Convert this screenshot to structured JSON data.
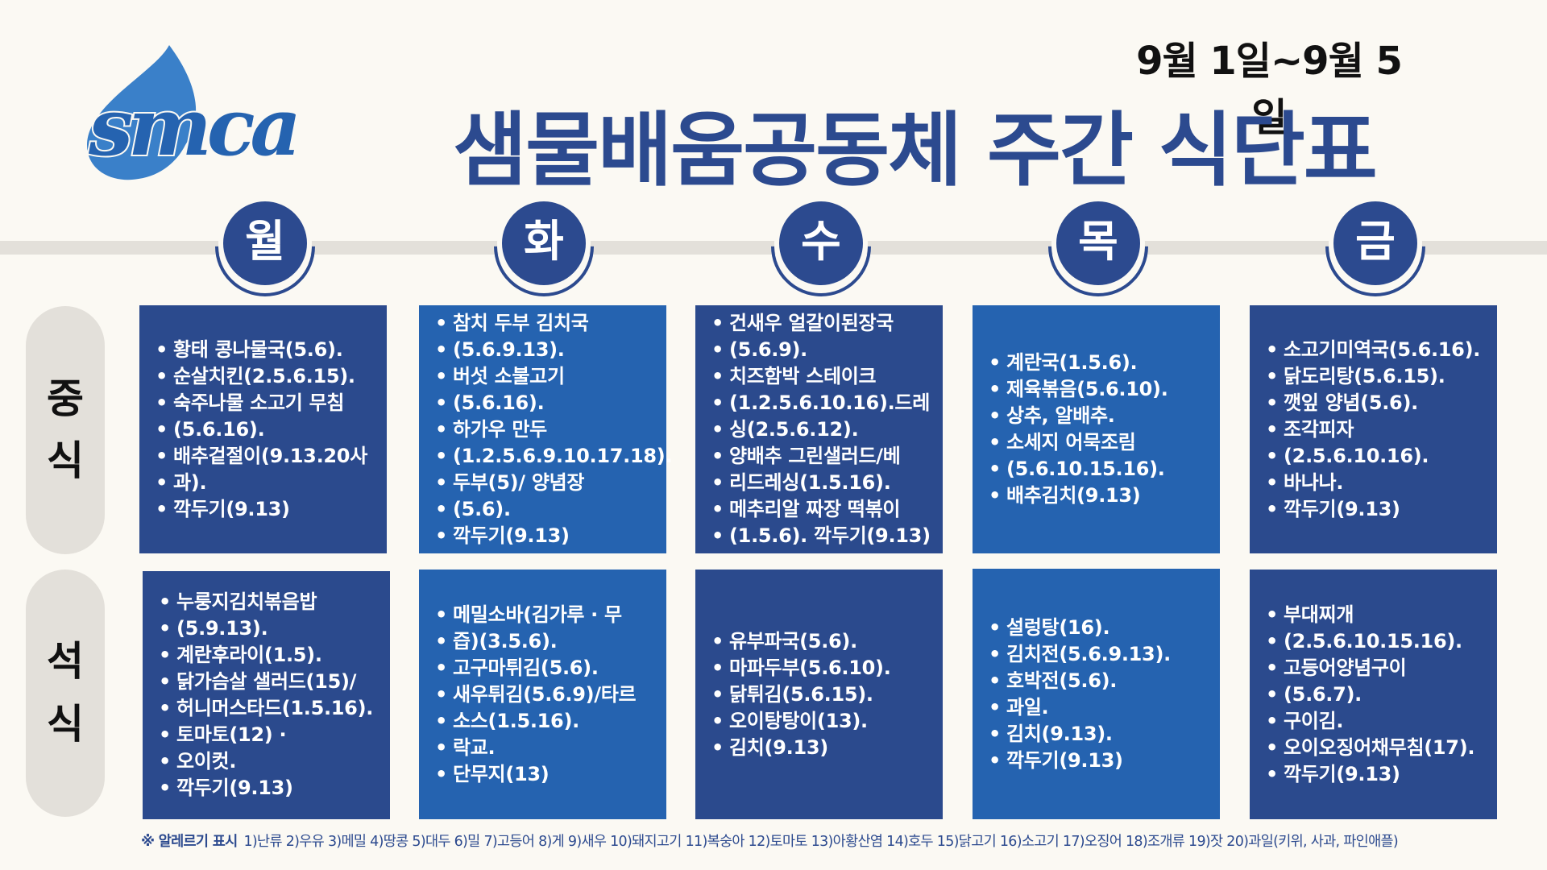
{
  "logo_text": "smca",
  "date_range": "9월 1일~9월 5일",
  "title": "샘물배움공동체 주간 식단표",
  "days": [
    "월",
    "화",
    "수",
    "목",
    "금"
  ],
  "meals": {
    "lunch_label": [
      "중",
      "식"
    ],
    "dinner_label": [
      "석",
      "식"
    ]
  },
  "lunch": [
    [
      "황태 콩나물국(5.6).",
      "순살치킨(2.5.6.15).",
      "숙주나물 소고기 무침",
      "(5.6.16).",
      "배추겉절이(9.13.20사",
      "과).",
      "깍두기(9.13)"
    ],
    [
      "참치 두부 김치국",
      "(5.6.9.13).",
      "버섯 소불고기",
      "(5.6.16).",
      "하가우 만두",
      "(1.2.5.6.9.10.17.18).",
      "두부(5)/ 양념장",
      "(5.6).",
      "깍두기(9.13)"
    ],
    [
      "건새우 얼갈이된장국",
      "(5.6.9).",
      "치즈함박 스테이크",
      "(1.2.5.6.10.16).드레",
      "싱(2.5.6.12).",
      "양배추 그린샐러드/베",
      "리드레싱(1.5.16).",
      "메추리알 짜장 떡볶이",
      "(1.5.6). 깍두기(9.13)"
    ],
    [
      "계란국(1.5.6).",
      "제육볶음(5.6.10).",
      "상추, 알배추.",
      "소세지 어묵조림",
      "(5.6.10.15.16).",
      "배추김치(9.13)"
    ],
    [
      "소고기미역국(5.6.16).",
      "닭도리탕(5.6.15).",
      "깻잎 양념(5.6).",
      "조각피자",
      "(2.5.6.10.16).",
      "바나나.",
      "깍두기(9.13)"
    ]
  ],
  "dinner": [
    [
      "누룽지김치볶음밥",
      "(5.9.13).",
      "계란후라이(1.5).",
      "닭가슴살 샐러드(15)/",
      "허니머스타드(1.5.16).",
      "토마토(12) ·",
      "오이컷.",
      "깍두기(9.13)"
    ],
    [
      "메밀소바(김가루 · 무",
      "즙)(3.5.6).",
      "고구마튀김(5.6).",
      "새우튀김(5.6.9)/타르",
      "소스(1.5.16).",
      "락교.",
      "단무지(13)"
    ],
    [
      "유부파국(5.6).",
      "마파두부(5.6.10).",
      "닭튀김(5.6.15).",
      "오이탕탕이(13).",
      "김치(9.13)"
    ],
    [
      "설렁탕(16).",
      "김치전(5.6.9.13).",
      "호박전(5.6).",
      "과일.",
      "김치(9.13).",
      "깍두기(9.13)"
    ],
    [
      "부대찌개",
      "(2.5.6.10.15.16).",
      "고등어양념구이",
      "(5.6.7).",
      "구이김.",
      "오이오징어채무침(17).",
      "깍두기(9.13)"
    ]
  ],
  "allergy_label": "※ 알레르기 표시",
  "allergy_text": "1)난류 2)우유 3)메밀 4)땅콩 5)대두 6)밀 7)고등어 8)게 9)새우 10)돼지고기 11)복숭아 12)토마토 13)아황산염 14)호두 15)닭고기 16)소고기 17)오징어 18)조개류 19)잣 20)과일(키위, 사과, 파인애플)",
  "colors": {
    "primary": "#2c4a8f",
    "box_dark": "#2b4a8d",
    "box_light": "#2563b0",
    "background": "#fbf9f3",
    "band": "#e3e0da"
  }
}
